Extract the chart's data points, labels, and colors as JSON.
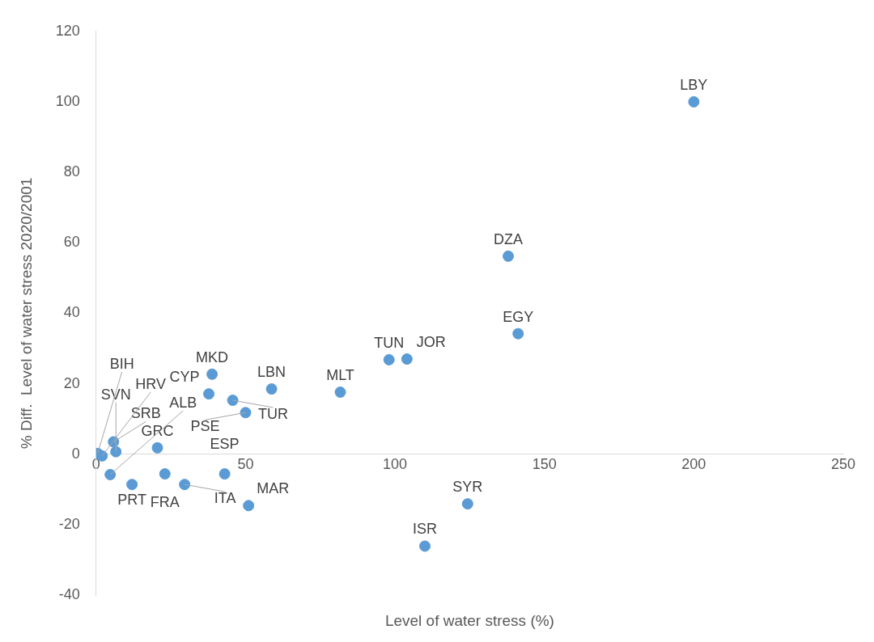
{
  "chart_data": {
    "type": "scatter",
    "xlabel": "Level of water stress (%)",
    "ylabel": "% Diff.  Level of water stress 2020/2001",
    "xlim": [
      0,
      250
    ],
    "xticks": [
      0,
      50,
      100,
      150,
      200,
      250
    ],
    "ylim": [
      -40,
      120
    ],
    "yticks": [
      -40,
      -20,
      0,
      20,
      40,
      60,
      80,
      100,
      120
    ],
    "grid": false,
    "legend": false,
    "marker": "circle",
    "series": [
      {
        "color": "#5b9bd5",
        "x": [
          200,
          137.9,
          141.2,
          98,
          104,
          81.7,
          58.7,
          38.8,
          37.7,
          45.7,
          50,
          20.5,
          5.8,
          6.6,
          2,
          0.5,
          4.7,
          12,
          23,
          29.6,
          43,
          51,
          124.3,
          110
        ],
        "values": [
          100,
          56.2,
          34.2,
          26.8,
          27,
          17.6,
          18.5,
          22.7,
          17.1,
          15.3,
          11.8,
          1.8,
          3.5,
          0.7,
          -0.5,
          0.2,
          -5.8,
          -8.6,
          -5.6,
          -8.6,
          -5.6,
          -14.6,
          -14.1,
          -26.1
        ]
      }
    ],
    "annotations": [
      {
        "text": "LBY",
        "x": 200,
        "y": 100
      },
      {
        "text": "DZA",
        "x": 137.9,
        "y": 56.2
      },
      {
        "text": "EGY",
        "x": 141.2,
        "y": 34.2
      },
      {
        "text": "TUN",
        "x": 98,
        "y": 26.8
      },
      {
        "text": "JOR",
        "x": 104,
        "y": 27
      },
      {
        "text": "MLT",
        "x": 81.7,
        "y": 17.6
      },
      {
        "text": "LBN",
        "x": 58.7,
        "y": 18.5
      },
      {
        "text": "MKD",
        "x": 38.8,
        "y": 22.7
      },
      {
        "text": "CYP",
        "x": 37.7,
        "y": 17.1
      },
      {
        "text": "TUR",
        "x": 45.7,
        "y": 15.3
      },
      {
        "text": "PSE",
        "x": 50,
        "y": 11.8
      },
      {
        "text": "GRC",
        "x": 20.5,
        "y": 1.8
      },
      {
        "text": "SRB",
        "x": 5.8,
        "y": 3.5
      },
      {
        "text": "SVN",
        "x": 6.6,
        "y": 0.7
      },
      {
        "text": "HRV",
        "x": 2,
        "y": -0.5
      },
      {
        "text": "BIH",
        "x": 0.5,
        "y": 0.2
      },
      {
        "text": "ALB",
        "x": 4.7,
        "y": -5.8
      },
      {
        "text": "PRT",
        "x": 12,
        "y": -8.6
      },
      {
        "text": "FRA",
        "x": 23,
        "y": -5.6
      },
      {
        "text": "ITA",
        "x": 29.6,
        "y": -8.6
      },
      {
        "text": "ESP",
        "x": 43,
        "y": -5.6
      },
      {
        "text": "MAR",
        "x": 51,
        "y": -14.6
      },
      {
        "text": "SYR",
        "x": 124.3,
        "y": -14.1
      },
      {
        "text": "ISR",
        "x": 110,
        "y": -26.1
      }
    ]
  }
}
